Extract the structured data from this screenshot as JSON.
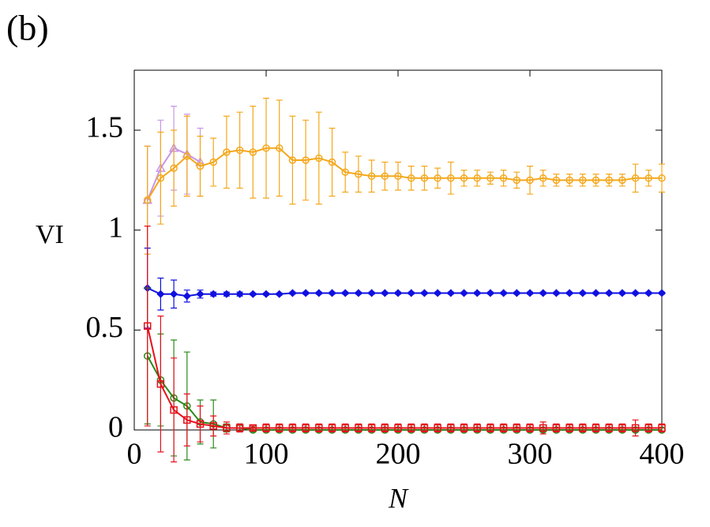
{
  "chart_data": {
    "type": "line",
    "panel_label": "(b)",
    "x_label": "N",
    "y_label": "VI",
    "xlim": [
      0,
      400
    ],
    "ylim": [
      0,
      1.8
    ],
    "xticks": [
      0,
      100,
      200,
      300,
      400
    ],
    "yticks": [
      0,
      0.5,
      1,
      1.5
    ],
    "x": [
      10,
      20,
      30,
      40,
      50,
      60,
      70,
      80,
      90,
      100,
      110,
      120,
      130,
      140,
      150,
      160,
      170,
      180,
      190,
      200,
      210,
      220,
      230,
      240,
      250,
      260,
      270,
      280,
      290,
      300,
      310,
      320,
      330,
      340,
      350,
      360,
      370,
      380,
      390,
      400
    ],
    "series": [
      {
        "color": "#c896e6",
        "marker": "triangle",
        "x": [
          10,
          20,
          30,
          40,
          50
        ],
        "values": [
          1.15,
          1.31,
          1.41,
          1.38,
          1.34
        ],
        "errors": [
          0.27,
          0.24,
          0.21,
          0.2,
          0.17
        ]
      },
      {
        "color": "#f4a81c",
        "marker": "circle",
        "values": [
          1.15,
          1.26,
          1.31,
          1.37,
          1.32,
          1.34,
          1.39,
          1.4,
          1.39,
          1.41,
          1.41,
          1.35,
          1.35,
          1.36,
          1.34,
          1.29,
          1.28,
          1.27,
          1.27,
          1.27,
          1.26,
          1.26,
          1.26,
          1.26,
          1.26,
          1.26,
          1.26,
          1.26,
          1.25,
          1.25,
          1.26,
          1.25,
          1.25,
          1.25,
          1.25,
          1.25,
          1.25,
          1.26,
          1.26,
          1.26
        ],
        "errors": [
          0.27,
          0.23,
          0.19,
          0.2,
          0.15,
          0.12,
          0.18,
          0.19,
          0.23,
          0.25,
          0.24,
          0.22,
          0.2,
          0.23,
          0.17,
          0.1,
          0.09,
          0.08,
          0.07,
          0.07,
          0.06,
          0.06,
          0.05,
          0.08,
          0.04,
          0.04,
          0.03,
          0.04,
          0.04,
          0.07,
          0.04,
          0.03,
          0.03,
          0.03,
          0.03,
          0.03,
          0.03,
          0.07,
          0.04,
          0.07
        ]
      },
      {
        "color": "#1010e0",
        "marker": "diamond",
        "values": [
          0.71,
          0.68,
          0.68,
          0.67,
          0.68,
          0.68,
          0.68,
          0.68,
          0.68,
          0.68,
          0.68,
          0.685,
          0.685,
          0.685,
          0.685,
          0.685,
          0.685,
          0.685,
          0.685,
          0.685,
          0.685,
          0.685,
          0.685,
          0.685,
          0.685,
          0.685,
          0.685,
          0.685,
          0.685,
          0.685,
          0.685,
          0.685,
          0.685,
          0.685,
          0.685,
          0.685,
          0.685,
          0.685,
          0.685,
          0.685
        ],
        "errors": [
          0.2,
          0.08,
          0.07,
          0.03,
          0.02,
          0.01,
          0.01,
          0.01,
          0.005,
          0.005,
          0.005,
          0.005,
          0.005,
          0.005,
          0.005,
          0.005,
          0.005,
          0.005,
          0.005,
          0.005,
          0.005,
          0.005,
          0.005,
          0.005,
          0.005,
          0.005,
          0.005,
          0.005,
          0.005,
          0.005,
          0.005,
          0.005,
          0.005,
          0.005,
          0.005,
          0.005,
          0.005,
          0.005,
          0.005,
          0.005
        ]
      },
      {
        "color": "#2a8a1a",
        "marker": "circle",
        "values": [
          0.37,
          0.25,
          0.16,
          0.12,
          0.04,
          0.03,
          0.01,
          0.01,
          0,
          0,
          0,
          0,
          0,
          0,
          0,
          0,
          0,
          0,
          0,
          0,
          0,
          0,
          0,
          0,
          0,
          0,
          0,
          0,
          0,
          0,
          0,
          0,
          0,
          0,
          0,
          0,
          0,
          0,
          0,
          0
        ],
        "errors": [
          0.34,
          0.23,
          0.29,
          0.27,
          0.11,
          0.12,
          0.02,
          0.02,
          0.01,
          0.01,
          0.01,
          0.01,
          0.01,
          0.01,
          0.01,
          0.01,
          0.01,
          0.01,
          0.01,
          0.01,
          0.01,
          0.01,
          0.01,
          0.01,
          0.01,
          0.01,
          0.01,
          0.01,
          0.01,
          0.01,
          0.01,
          0.01,
          0.01,
          0.01,
          0.01,
          0.01,
          0.01,
          0.01,
          0.01,
          0.01
        ]
      },
      {
        "color": "#e8101c",
        "marker": "square",
        "values": [
          0.52,
          0.23,
          0.1,
          0.05,
          0.03,
          0.02,
          0.01,
          0.01,
          0.01,
          0.01,
          0.01,
          0.01,
          0.01,
          0.01,
          0.01,
          0.01,
          0.01,
          0.01,
          0.01,
          0.01,
          0.01,
          0.01,
          0.01,
          0.01,
          0.01,
          0.01,
          0.01,
          0.01,
          0.01,
          0.01,
          0.01,
          0.01,
          0.01,
          0.01,
          0.01,
          0.01,
          0.01,
          0.01,
          0.01,
          0.01
        ],
        "errors": [
          0.5,
          0.34,
          0.26,
          0.13,
          0.09,
          0.05,
          0.03,
          0.02,
          0.01,
          0.02,
          0.02,
          0.02,
          0.02,
          0.02,
          0.02,
          0.02,
          0.02,
          0.02,
          0.02,
          0.02,
          0.02,
          0.02,
          0.02,
          0.02,
          0.02,
          0.02,
          0.02,
          0.02,
          0.02,
          0.02,
          0.03,
          0.02,
          0.02,
          0.02,
          0.02,
          0.02,
          0.02,
          0.04,
          0.02,
          0.02
        ]
      }
    ]
  }
}
